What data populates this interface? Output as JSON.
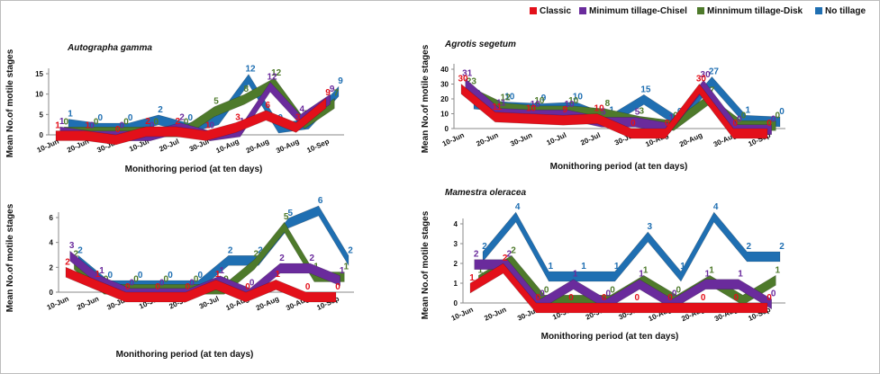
{
  "legend": [
    {
      "name": "Classic",
      "color": "#e3101a"
    },
    {
      "name": "Minimum tillage-Chisel",
      "color": "#6a2b9c"
    },
    {
      "name": "Minnimum tillage-Disk",
      "color": "#4e7a2b"
    },
    {
      "name": "No tillage",
      "color": "#1f6fb2"
    }
  ],
  "chart_data": [
    {
      "type": "area",
      "title": "Autographa gamma",
      "xlabel": "Monithoring period (at ten days)",
      "ylabel": "Mean No.of motile stages",
      "categories": [
        "10-Jun",
        "20-Jun",
        "30-Jun",
        "10-Jul",
        "20-Jul",
        "30-Jul",
        "10-Aug",
        "20-Aug",
        "30-Aug",
        "10-Sep"
      ],
      "ylim": [
        0,
        15
      ],
      "yticks": [
        0,
        5,
        10,
        15
      ],
      "series": [
        {
          "name": "Classic",
          "values": [
            1,
            1,
            0,
            2,
            2,
            1,
            3,
            6,
            3,
            9
          ]
        },
        {
          "name": "Minimum tillage-Chisel",
          "values": [
            1,
            0,
            0,
            0,
            2,
            0,
            1,
            12,
            4,
            9
          ]
        },
        {
          "name": "Minnimum tillage-Disk",
          "values": [
            0,
            0,
            0,
            0,
            0,
            5,
            8,
            12,
            2,
            7
          ]
        },
        {
          "name": "No tillage",
          "values": [
            1,
            0,
            0,
            2,
            0,
            2,
            12,
            0,
            1,
            9
          ]
        }
      ]
    },
    {
      "type": "area",
      "title": "Agrotis segetum",
      "xlabel": "Monithoring period (at ten days)",
      "ylabel": "Mean No.of motile stages",
      "categories": [
        "10-Jun",
        "20-Jun",
        "30-Jun",
        "10-Jul",
        "20-Jul",
        "30-Jul",
        "10-Aug",
        "20-Aug",
        "30-Aug",
        "10-Sep"
      ],
      "ylim": [
        0,
        40
      ],
      "yticks": [
        0,
        10,
        20,
        30,
        40
      ],
      "series": [
        {
          "name": "Classic",
          "values": [
            30,
            11,
            10,
            9,
            10,
            0,
            0,
            30,
            0,
            0
          ]
        },
        {
          "name": "Minimum tillage-Chisel",
          "values": [
            31,
            11,
            10,
            10,
            5,
            5,
            1,
            30,
            0,
            0
          ]
        },
        {
          "name": "Minnimum tillage-Disk",
          "values": [
            23,
            12,
            10,
            10,
            8,
            3,
            0,
            17,
            0,
            0
          ]
        },
        {
          "name": "No tillage",
          "values": [
            12,
            10,
            9,
            10,
            1,
            15,
            0,
            27,
            1,
            0
          ]
        }
      ]
    },
    {
      "type": "area",
      "title": "",
      "xlabel": "Monithoring period (at ten days)",
      "ylabel": "Mean No.of motile stages",
      "categories": [
        "10-Jun",
        "20-Jun",
        "30-Jun",
        "10-Jul",
        "20-Jul",
        "30-Jul",
        "10-Aug",
        "20-Aug",
        "30-Aug",
        "10-Sep"
      ],
      "ylim": [
        0,
        6
      ],
      "yticks": [
        0,
        2,
        4,
        6
      ],
      "series": [
        {
          "name": "Classic",
          "values": [
            2,
            1,
            0,
            0,
            0,
            1,
            0,
            1,
            0,
            0
          ]
        },
        {
          "name": "Minimum tillage-Chisel",
          "values": [
            3,
            1,
            0,
            0,
            0,
            1,
            0,
            2,
            2,
            1
          ]
        },
        {
          "name": "Minnimum tillage-Disk",
          "values": [
            2,
            0,
            0,
            0,
            0,
            0,
            2,
            5,
            1,
            1
          ]
        },
        {
          "name": "No tillage",
          "values": [
            2,
            0,
            0,
            0,
            0,
            2,
            2,
            5,
            6,
            2
          ]
        }
      ]
    },
    {
      "type": "area",
      "title": "Mamestra oleracea",
      "xlabel": "Monithoring period (at ten days)",
      "ylabel": "Mean No.of motile stages",
      "categories": [
        "10-Jun",
        "20-Jun",
        "30-Jun",
        "10-Jul",
        "20-Jul",
        "30-Jul",
        "10-Aug",
        "20-Aug",
        "30-Aug",
        "10-Sep"
      ],
      "ylim": [
        0,
        4
      ],
      "yticks": [
        0,
        1,
        2,
        3,
        4
      ],
      "series": [
        {
          "name": "Classic",
          "values": [
            1,
            2,
            0,
            0,
            0,
            0,
            0,
            0,
            0,
            0
          ]
        },
        {
          "name": "Minimum tillage-Chisel",
          "values": [
            2,
            2,
            0,
            1,
            0,
            1,
            0,
            1,
            1,
            0
          ]
        },
        {
          "name": "Minnimum tillage-Disk",
          "values": [
            1,
            2,
            0,
            0,
            0,
            1,
            0,
            1,
            0,
            1
          ]
        },
        {
          "name": "No tillage",
          "values": [
            2,
            4,
            1,
            1,
            1,
            3,
            1,
            4,
            2,
            2
          ]
        }
      ]
    }
  ]
}
